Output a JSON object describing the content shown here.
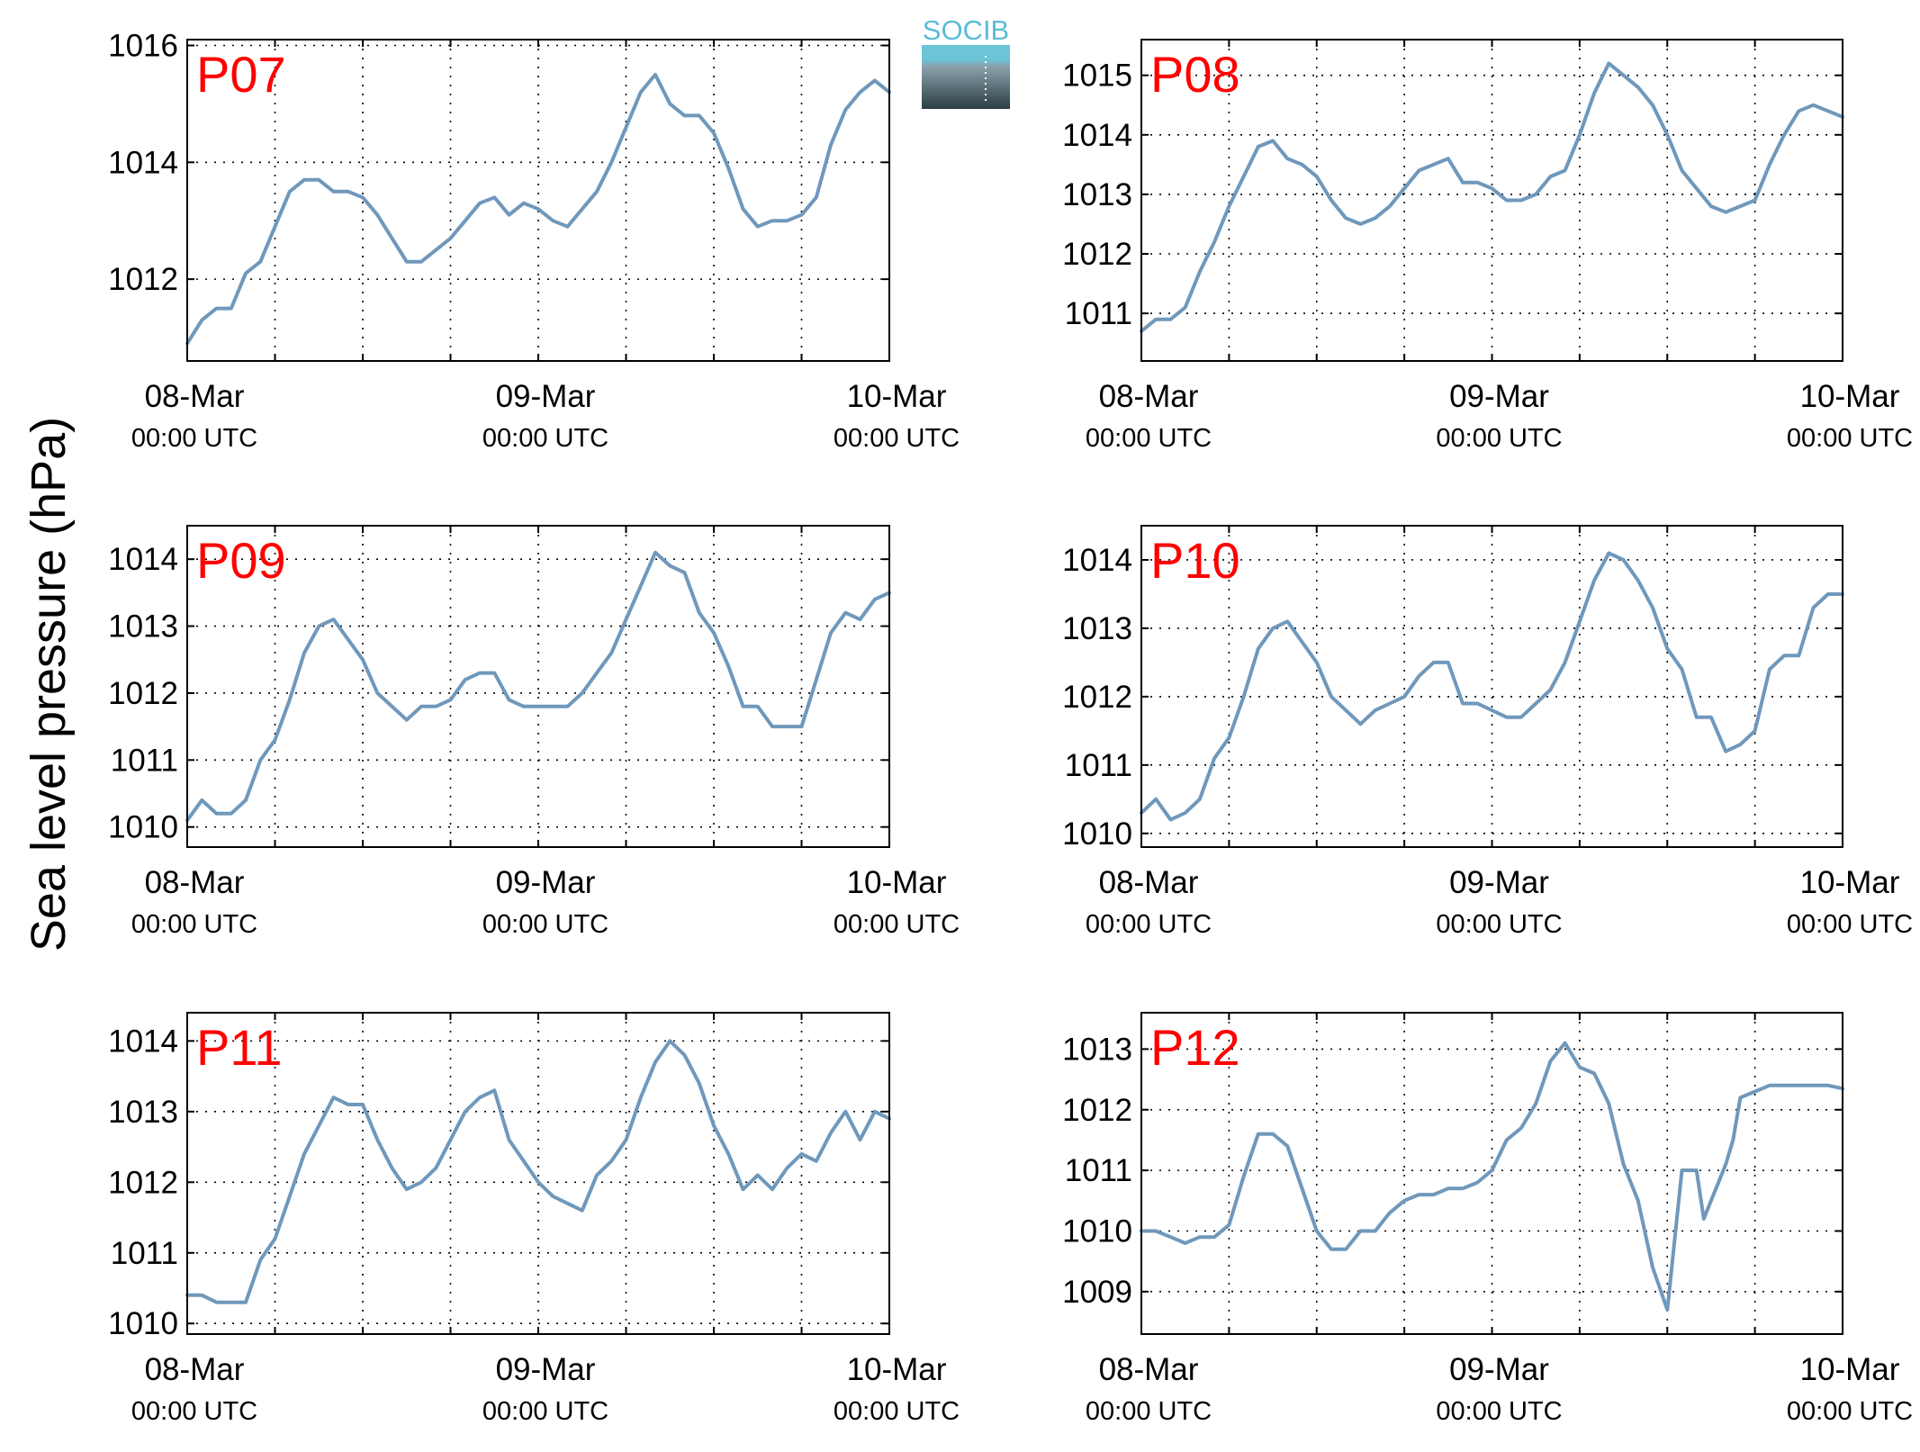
{
  "ylabel": "Sea level pressure (hPa)",
  "logo_text": "SOCIB",
  "colors": {
    "line": "#6f98bb",
    "station_label": "#ff0000",
    "axis": "#000000",
    "grid": "#000000",
    "logo_top": "#5bbcd6",
    "logo_bottom": "#34444c"
  },
  "x_tick_dates": [
    "08-Mar",
    "09-Mar",
    "10-Mar"
  ],
  "x_tick_time": "00:00 UTC",
  "chart_data": [
    {
      "type": "line",
      "station": "P07",
      "xlabel": "",
      "ylabel": "Sea level pressure (hPa)",
      "xlim_hours": [
        0,
        48
      ],
      "ylim": [
        1010.6,
        1016.1
      ],
      "yticks": [
        1012,
        1014,
        1016
      ],
      "grid": true,
      "x_hours": [
        0,
        1,
        2,
        3,
        4,
        5,
        6,
        7,
        8,
        9,
        10,
        11,
        12,
        13,
        14,
        15,
        16,
        17,
        18,
        19,
        20,
        21,
        22,
        23,
        24,
        25,
        26,
        27,
        28,
        29,
        30,
        31,
        32,
        33,
        34,
        35,
        36,
        37,
        38,
        39,
        40,
        41,
        42,
        43,
        44,
        45,
        46,
        47,
        48
      ],
      "values": [
        1010.9,
        1011.3,
        1011.5,
        1011.5,
        1012.1,
        1012.3,
        1012.9,
        1013.5,
        1013.7,
        1013.7,
        1013.5,
        1013.5,
        1013.4,
        1013.1,
        1012.7,
        1012.3,
        1012.3,
        1012.5,
        1012.7,
        1013.0,
        1013.3,
        1013.4,
        1013.1,
        1013.3,
        1013.2,
        1013.0,
        1012.9,
        1013.2,
        1013.5,
        1014.0,
        1014.6,
        1015.2,
        1015.5,
        1015.0,
        1014.8,
        1014.8,
        1014.5,
        1013.9,
        1013.2,
        1012.9,
        1013.0,
        1013.0,
        1013.1,
        1013.4,
        1014.3,
        1014.9,
        1015.2,
        1015.4,
        1015.2
      ]
    },
    {
      "type": "line",
      "station": "P08",
      "xlabel": "",
      "ylabel": "Sea level pressure (hPa)",
      "xlim_hours": [
        0,
        48
      ],
      "ylim": [
        1010.2,
        1015.6
      ],
      "yticks": [
        1011,
        1012,
        1013,
        1014,
        1015
      ],
      "grid": true,
      "x_hours": [
        0,
        1,
        2,
        3,
        4,
        5,
        6,
        7,
        8,
        9,
        10,
        11,
        12,
        13,
        14,
        15,
        16,
        17,
        18,
        19,
        20,
        21,
        22,
        23,
        24,
        25,
        26,
        27,
        28,
        29,
        30,
        31,
        32,
        33,
        34,
        35,
        36,
        37,
        38,
        39,
        40,
        41,
        42,
        43,
        44,
        45,
        46,
        47,
        48
      ],
      "values": [
        1010.7,
        1010.9,
        1010.9,
        1011.1,
        1011.7,
        1012.2,
        1012.8,
        1013.3,
        1013.8,
        1013.9,
        1013.6,
        1013.5,
        1013.3,
        1012.9,
        1012.6,
        1012.5,
        1012.6,
        1012.8,
        1013.1,
        1013.4,
        1013.5,
        1013.6,
        1013.2,
        1013.2,
        1013.1,
        1012.9,
        1012.9,
        1013.0,
        1013.3,
        1013.4,
        1014.0,
        1014.7,
        1015.2,
        1015.0,
        1014.8,
        1014.5,
        1014.0,
        1013.4,
        1013.1,
        1012.8,
        1012.7,
        1012.8,
        1012.9,
        1013.5,
        1014.0,
        1014.4,
        1014.5,
        1014.4,
        1014.3
      ]
    },
    {
      "type": "line",
      "station": "P09",
      "xlabel": "",
      "ylabel": "Sea level pressure (hPa)",
      "xlim_hours": [
        0,
        48
      ],
      "ylim": [
        1009.7,
        1014.5
      ],
      "yticks": [
        1010,
        1011,
        1012,
        1013,
        1014
      ],
      "grid": true,
      "x_hours": [
        0,
        1,
        2,
        3,
        4,
        5,
        6,
        7,
        8,
        9,
        10,
        11,
        12,
        13,
        14,
        15,
        16,
        17,
        18,
        19,
        20,
        21,
        22,
        23,
        24,
        25,
        26,
        27,
        28,
        29,
        30,
        31,
        32,
        33,
        34,
        35,
        36,
        37,
        38,
        39,
        40,
        41,
        42,
        43,
        44,
        45,
        46,
        47,
        48
      ],
      "values": [
        1010.1,
        1010.4,
        1010.2,
        1010.2,
        1010.4,
        1011.0,
        1011.3,
        1011.9,
        1012.6,
        1013.0,
        1013.1,
        1012.8,
        1012.5,
        1012.0,
        1011.8,
        1011.6,
        1011.8,
        1011.8,
        1011.9,
        1012.2,
        1012.3,
        1012.3,
        1011.9,
        1011.8,
        1011.8,
        1011.8,
        1011.8,
        1012.0,
        1012.3,
        1012.6,
        1013.1,
        1013.6,
        1014.1,
        1013.9,
        1013.8,
        1013.2,
        1012.9,
        1012.4,
        1011.8,
        1011.8,
        1011.5,
        1011.5,
        1011.5,
        1012.2,
        1012.9,
        1013.2,
        1013.1,
        1013.4,
        1013.5
      ]
    },
    {
      "type": "line",
      "station": "P10",
      "xlabel": "",
      "ylabel": "Sea level pressure (hPa)",
      "xlim_hours": [
        0,
        48
      ],
      "ylim": [
        1009.8,
        1014.5
      ],
      "yticks": [
        1010,
        1011,
        1012,
        1013,
        1014
      ],
      "grid": true,
      "x_hours": [
        0,
        1,
        2,
        3,
        4,
        5,
        6,
        7,
        8,
        9,
        10,
        11,
        12,
        13,
        14,
        15,
        16,
        17,
        18,
        19,
        20,
        21,
        22,
        23,
        24,
        25,
        26,
        27,
        28,
        29,
        30,
        31,
        32,
        33,
        34,
        35,
        36,
        37,
        38,
        39,
        40,
        41,
        42,
        43,
        44,
        45,
        46,
        47,
        48
      ],
      "values": [
        1010.3,
        1010.5,
        1010.2,
        1010.3,
        1010.5,
        1011.1,
        1011.4,
        1012.0,
        1012.7,
        1013.0,
        1013.1,
        1012.8,
        1012.5,
        1012.0,
        1011.8,
        1011.6,
        1011.8,
        1011.9,
        1012.0,
        1012.3,
        1012.5,
        1012.5,
        1011.9,
        1011.9,
        1011.8,
        1011.7,
        1011.7,
        1011.9,
        1012.1,
        1012.5,
        1013.1,
        1013.7,
        1014.1,
        1014.0,
        1013.7,
        1013.3,
        1012.7,
        1012.4,
        1011.7,
        1011.7,
        1011.2,
        1011.3,
        1011.5,
        1012.4,
        1012.6,
        1012.6,
        1013.3,
        1013.5,
        1013.5
      ]
    },
    {
      "type": "line",
      "station": "P11",
      "xlabel": "",
      "ylabel": "Sea level pressure (hPa)",
      "xlim_hours": [
        0,
        48
      ],
      "ylim": [
        1009.85,
        1014.4
      ],
      "yticks": [
        1010,
        1011,
        1012,
        1013,
        1014
      ],
      "grid": true,
      "x_hours": [
        0,
        1,
        2,
        3,
        4,
        5,
        6,
        7,
        8,
        9,
        10,
        11,
        12,
        13,
        14,
        15,
        16,
        17,
        18,
        19,
        20,
        21,
        22,
        23,
        24,
        25,
        26,
        27,
        28,
        29,
        30,
        31,
        32,
        33,
        34,
        35,
        36,
        37,
        38,
        39,
        40,
        41,
        42,
        43,
        44,
        45,
        46,
        47,
        48
      ],
      "values": [
        1010.4,
        1010.4,
        1010.3,
        1010.3,
        1010.3,
        1010.9,
        1011.2,
        1011.8,
        1012.4,
        1012.8,
        1013.2,
        1013.1,
        1013.1,
        1012.6,
        1012.2,
        1011.9,
        1012.0,
        1012.2,
        1012.6,
        1013.0,
        1013.2,
        1013.3,
        1012.6,
        1012.3,
        1012.0,
        1011.8,
        1011.7,
        1011.6,
        1012.1,
        1012.3,
        1012.6,
        1013.2,
        1013.7,
        1014.0,
        1013.8,
        1013.4,
        1012.8,
        1012.4,
        1011.9,
        1012.1,
        1011.9,
        1012.2,
        1012.4,
        1012.3,
        1012.7,
        1013.0,
        1012.6,
        1013.0,
        1012.9
      ]
    },
    {
      "type": "line",
      "station": "P12",
      "xlabel": "",
      "ylabel": "Sea level pressure (hPa)",
      "xlim_hours": [
        0,
        48
      ],
      "ylim": [
        1008.3,
        1013.6
      ],
      "yticks": [
        1009,
        1010,
        1011,
        1012,
        1013
      ],
      "grid": true,
      "x_hours": [
        0,
        1,
        2,
        3,
        4,
        5,
        6,
        7,
        8,
        9,
        10,
        11,
        12,
        13,
        14,
        15,
        16,
        17,
        18,
        19,
        20,
        21,
        22,
        23,
        24,
        25,
        26,
        27,
        28,
        29,
        30,
        31,
        32,
        33,
        34,
        35,
        36,
        37,
        38,
        38.5,
        39,
        39.5,
        40,
        40.5,
        41,
        42,
        43,
        44,
        45,
        46,
        47,
        48
      ],
      "values": [
        1010.0,
        1010.0,
        1009.9,
        1009.8,
        1009.9,
        1009.9,
        1010.1,
        1010.9,
        1011.6,
        1011.6,
        1011.4,
        1010.7,
        1010.0,
        1009.7,
        1009.7,
        1010.0,
        1010.0,
        1010.3,
        1010.5,
        1010.6,
        1010.6,
        1010.7,
        1010.7,
        1010.8,
        1011.0,
        1011.5,
        1011.7,
        1012.1,
        1012.8,
        1013.1,
        1012.7,
        1012.6,
        1012.1,
        1011.1,
        1010.5,
        1009.4,
        1008.7,
        1011.0,
        1011.0,
        1010.2,
        1010.5,
        1010.8,
        1011.1,
        1011.5,
        1012.2,
        1012.3,
        1012.4,
        1012.4,
        1012.4,
        1012.4,
        1012.4,
        1012.35
      ]
    }
  ]
}
